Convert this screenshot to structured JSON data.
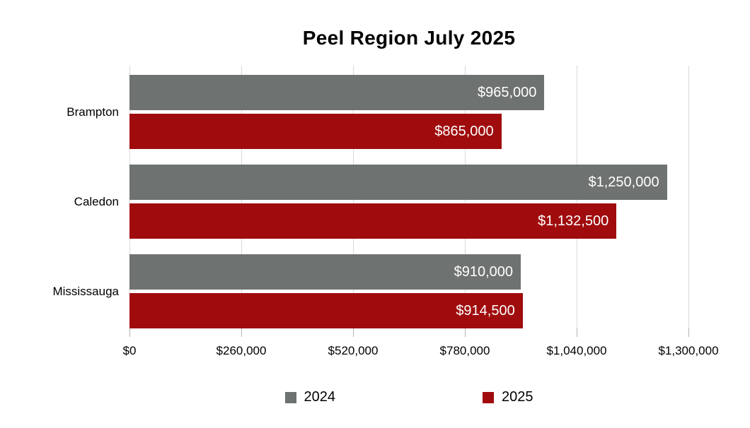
{
  "chart_data": {
    "type": "bar",
    "orientation": "horizontal",
    "title": "Peel Region July 2025",
    "categories": [
      "Brampton",
      "Caledon",
      "Mississauga"
    ],
    "series": [
      {
        "name": "2024",
        "color": "#6e7270",
        "values": [
          965000,
          1250000,
          910000
        ],
        "labels": [
          "$965,000",
          "$1,250,000",
          "$910,000"
        ]
      },
      {
        "name": "2025",
        "color": "#a00c0e",
        "values": [
          865000,
          1132500,
          914500
        ],
        "labels": [
          "$865,000",
          "$1,132,500",
          "$914,500"
        ]
      }
    ],
    "xlim": [
      0,
      1300000
    ],
    "x_ticks": [
      0,
      260000,
      520000,
      780000,
      1040000,
      1300000
    ],
    "x_tick_labels": [
      "$0",
      "$260,000",
      "$520,000",
      "$780,000",
      "$1,040,000",
      "$1,300,000"
    ],
    "grid": true,
    "legend_position": "bottom",
    "bar_label_position": "inside-end"
  },
  "colors": {
    "gridline": "#d9d9d9",
    "tick": "#b3b3b3",
    "text": "#000000",
    "bar_label": "#ffffff",
    "background": "#ffffff"
  }
}
